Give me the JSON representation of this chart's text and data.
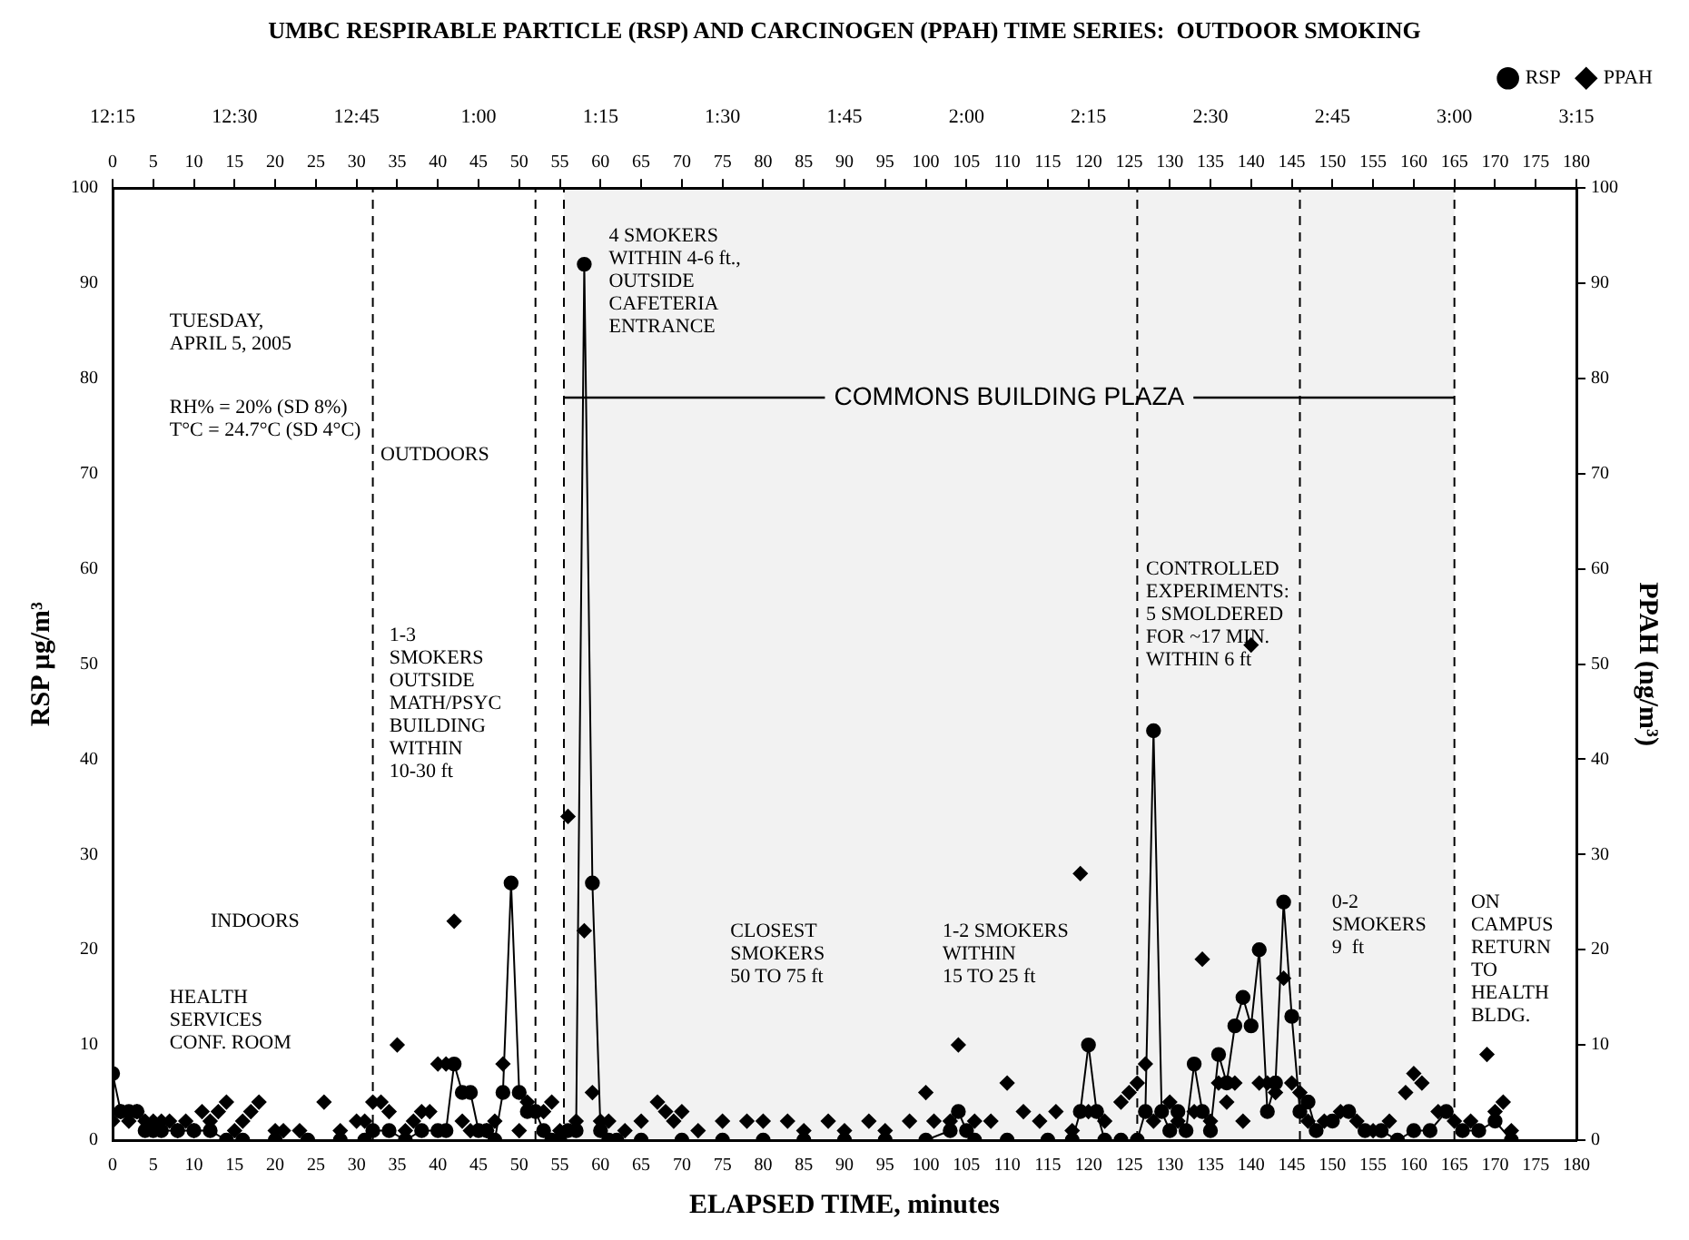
{
  "chart_data": {
    "type": "scatter",
    "title": "UMBC RESPIRABLE PARTICLE (RSP) AND CARCINOGEN (PPAH) TIME SERIES:  OUTDOOR SMOKING",
    "xlabel": "ELAPSED TIME, minutes",
    "ylabel": "RSP µg/m³",
    "y2label": "PPAH (ng/m³)",
    "series": [
      {
        "name": "RSP",
        "type": "line",
        "color": "#000000",
        "marker": "circle",
        "line_style": "solid",
        "x": [
          0,
          1,
          2,
          3,
          4,
          5,
          6,
          8,
          10,
          12,
          14,
          16,
          20,
          24,
          28,
          31,
          32,
          34,
          36,
          38,
          40,
          41,
          42,
          43,
          44,
          45,
          46,
          47,
          48,
          49,
          50,
          51,
          52,
          53,
          54,
          55,
          56,
          57,
          58,
          59,
          60,
          61,
          62,
          65,
          70,
          75,
          80,
          85,
          90,
          95,
          100,
          103,
          104,
          105,
          106,
          110,
          115,
          118,
          119,
          120,
          121,
          122,
          124,
          126,
          127,
          128,
          129,
          130,
          131,
          132,
          133,
          134,
          135,
          136,
          137,
          138,
          139,
          140,
          141,
          142,
          143,
          144,
          145,
          146,
          147,
          148,
          150,
          152,
          154,
          156,
          158,
          160,
          162,
          164,
          166,
          168,
          170,
          172
        ],
        "values": [
          7,
          3,
          3,
          3,
          1,
          1,
          1,
          1,
          1,
          1,
          0,
          0,
          0,
          0,
          0,
          0,
          1,
          1,
          0,
          1,
          1,
          1,
          8,
          5,
          5,
          1,
          1,
          0,
          5,
          27,
          5,
          3,
          3,
          1,
          0,
          0,
          1,
          1,
          92,
          27,
          1,
          0,
          0,
          0,
          0,
          0,
          0,
          0,
          0,
          0,
          0,
          1,
          3,
          1,
          0,
          0,
          0,
          0,
          3,
          10,
          3,
          0,
          0,
          0,
          3,
          43,
          3,
          1,
          3,
          1,
          8,
          3,
          1,
          9,
          6,
          12,
          15,
          12,
          20,
          3,
          6,
          25,
          13,
          3,
          4,
          1,
          2,
          3,
          1,
          1,
          0,
          1,
          1,
          3,
          1,
          1,
          2,
          0
        ]
      },
      {
        "name": "PPAH",
        "axis": "y2",
        "color": "#000000",
        "marker": "diamond",
        "x": [
          0,
          1,
          2,
          3,
          4,
          5,
          6,
          7,
          8,
          9,
          10,
          11,
          12,
          13,
          14,
          15,
          16,
          17,
          18,
          20,
          21,
          23,
          26,
          28,
          30,
          31,
          32,
          33,
          34,
          35,
          36,
          37,
          38,
          39,
          40,
          41,
          42,
          43,
          44,
          46,
          47,
          48,
          50,
          51,
          52,
          53,
          54,
          55,
          56,
          57,
          58,
          59,
          60,
          61,
          63,
          65,
          67,
          68,
          69,
          70,
          72,
          75,
          78,
          80,
          83,
          85,
          88,
          90,
          93,
          95,
          98,
          100,
          101,
          103,
          104,
          106,
          108,
          110,
          112,
          114,
          116,
          118,
          119,
          120,
          122,
          124,
          125,
          126,
          127,
          128,
          130,
          131,
          133,
          134,
          135,
          136,
          137,
          138,
          139,
          140,
          141,
          142,
          143,
          144,
          145,
          146,
          147,
          149,
          151,
          153,
          155,
          157,
          159,
          160,
          161,
          163,
          165,
          167,
          169,
          170,
          171,
          172
        ],
        "values": [
          2,
          3,
          2,
          3,
          2,
          2,
          2,
          2,
          1,
          2,
          1,
          3,
          2,
          3,
          4,
          1,
          2,
          3,
          4,
          1,
          1,
          1,
          4,
          1,
          2,
          2,
          4,
          4,
          3,
          10,
          1,
          2,
          3,
          3,
          8,
          8,
          23,
          2,
          1,
          1,
          2,
          8,
          1,
          4,
          3,
          3,
          4,
          1,
          34,
          2,
          22,
          5,
          2,
          2,
          1,
          2,
          4,
          3,
          2,
          3,
          1,
          2,
          2,
          2,
          2,
          1,
          2,
          1,
          2,
          1,
          2,
          5,
          2,
          2,
          10,
          2,
          2,
          6,
          3,
          2,
          3,
          1,
          28,
          3,
          2,
          4,
          5,
          6,
          8,
          2,
          4,
          2,
          3,
          19,
          2,
          6,
          4,
          6,
          2,
          52,
          6,
          6,
          5,
          17,
          6,
          5,
          2,
          2,
          3,
          2,
          1,
          2,
          5,
          7,
          6,
          3,
          2,
          2,
          9,
          3,
          4,
          1
        ]
      }
    ],
    "xlim": [
      0,
      180
    ],
    "xticks": [
      0,
      5,
      10,
      15,
      20,
      25,
      30,
      35,
      40,
      45,
      50,
      55,
      60,
      65,
      70,
      75,
      80,
      85,
      90,
      95,
      100,
      105,
      110,
      115,
      120,
      125,
      130,
      135,
      140,
      145,
      150,
      155,
      160,
      165,
      170,
      175,
      180
    ],
    "x2lim": [
      0,
      180
    ],
    "x2ticks": [
      0,
      5,
      10,
      15,
      20,
      25,
      30,
      35,
      40,
      45,
      50,
      55,
      60,
      65,
      70,
      75,
      80,
      85,
      90,
      95,
      100,
      105,
      110,
      115,
      120,
      125,
      130,
      135,
      140,
      145,
      150,
      155,
      160,
      165,
      170,
      175,
      180
    ],
    "ylim": [
      0,
      100
    ],
    "yticks": [
      0,
      10,
      20,
      30,
      40,
      50,
      60,
      70,
      80,
      90,
      100
    ],
    "y2lim": [
      0,
      100
    ],
    "y2ticks": [
      0,
      10,
      20,
      30,
      40,
      50,
      60,
      70,
      80,
      90,
      100
    ],
    "ref_lines": [
      {
        "axis": "x",
        "value": 32,
        "line_style": "dashed"
      },
      {
        "axis": "x",
        "value": 52,
        "line_style": "dashed"
      },
      {
        "axis": "x",
        "value": 55.5,
        "line_style": "dashed"
      },
      {
        "axis": "x",
        "value": 126,
        "line_style": "dashed"
      },
      {
        "axis": "x",
        "value": 146,
        "line_style": "dashed"
      },
      {
        "axis": "x",
        "value": 165,
        "line_style": "dashed"
      }
    ],
    "bands": [
      {
        "axis": "x",
        "from": 55.5,
        "to": 165,
        "label": "COMMONS BUILDING PLAZA"
      }
    ],
    "annotations": [
      "TUESDAY,\nAPRIL 5, 2005",
      "RH% = 20% (SD 8%)\nT°C = 24.7°C (SD 4°C)",
      "OUTDOORS",
      "1-3\nSMOKERS\nOUTSIDE\nMATH/PSYC\nBUILDING\nWITHIN\n10-30 ft",
      "INDOORS",
      "HEALTH\nSERVICES\nCONF. ROOM",
      "4 SMOKERS\nWITHIN 4-6 ft.,\nOUTSIDE\nCAFETERIA\nENTRANCE",
      "CLOSEST\nSMOKERS\n50 TO 75 ft",
      "1-2 SMOKERS\nWITHIN\n15 TO 25 ft",
      "CONTROLLED\nEXPERIMENTS:\n5 SMOLDERED\nFOR ~17 MIN.\nWITHIN 6 ft",
      "0-2\nSMOKERS\n9  ft",
      "ON\nCAMPUS\nRETURN\nTO\nHEALTH\nBLDG.",
      "12:15",
      "12:30",
      "12:45",
      "1:00",
      "1:15",
      "1:30",
      "1:45",
      "2:00",
      "2:15",
      "2:30",
      "2:45",
      "3:00",
      "3:15"
    ],
    "legend": "top right",
    "grid": false
  }
}
